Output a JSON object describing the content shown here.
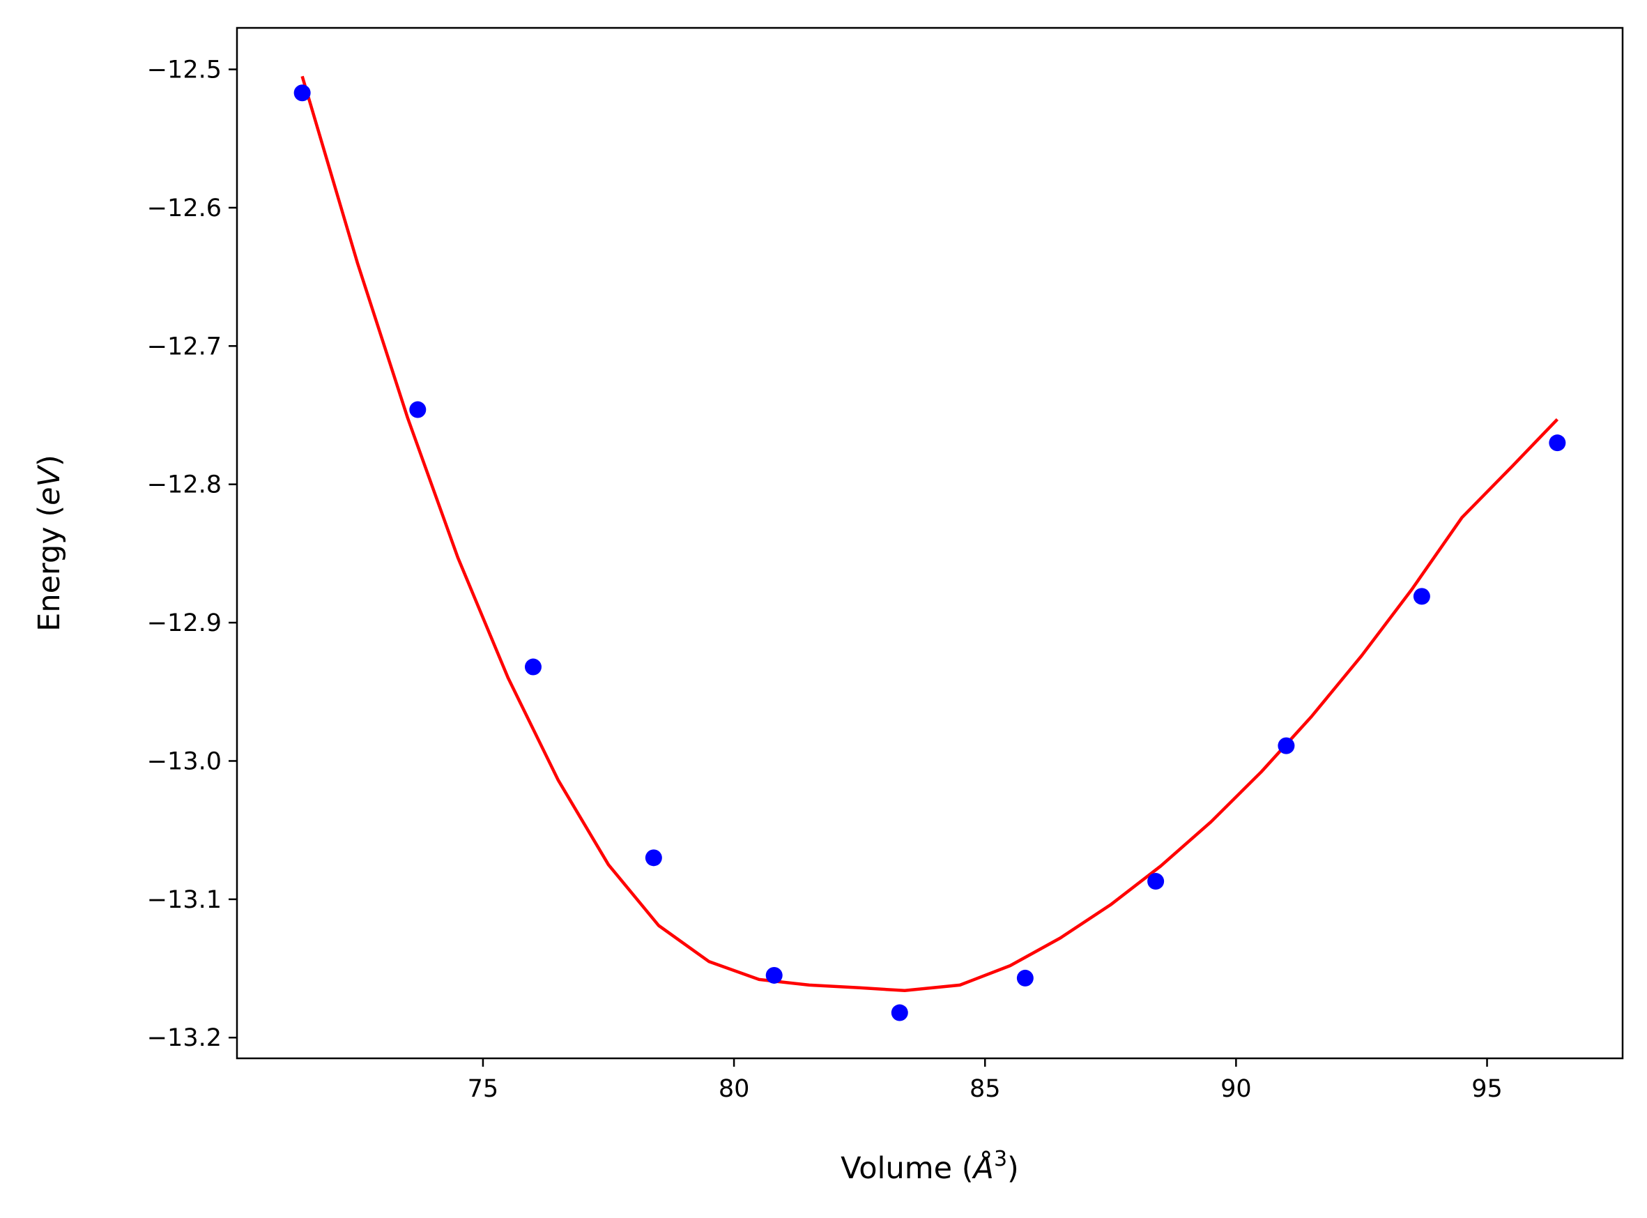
{
  "chart_data": {
    "type": "scatter",
    "title": "",
    "xlabel": "Volume ($\\AA^3$)",
    "ylabel": "Energy ($eV$)",
    "xlabel_parts": {
      "prefix": "Volume (",
      "symbol": "Å",
      "superscript": "3",
      "suffix": ")"
    },
    "ylabel_parts": {
      "prefix": "Energy (",
      "italic": "eV",
      "suffix": ")"
    },
    "xlim": [
      70.1,
      97.7
    ],
    "ylim": [
      -13.215,
      -12.47
    ],
    "xticks": [
      75,
      80,
      85,
      90,
      95
    ],
    "xtick_labels": [
      "75",
      "80",
      "85",
      "90",
      "95"
    ],
    "yticks": [
      -12.5,
      -12.6,
      -12.7,
      -12.8,
      -12.9,
      -13.0,
      -13.1,
      -13.2
    ],
    "ytick_labels": [
      "−12.5",
      "−12.6",
      "−12.7",
      "−12.8",
      "−12.9",
      "−13.0",
      "−13.1",
      "−13.2"
    ],
    "grid": false,
    "series": [
      {
        "kind": "points",
        "color": "#0000ff",
        "x": [
          71.4,
          73.7,
          76.0,
          78.4,
          80.8,
          83.3,
          85.8,
          88.4,
          91.0,
          93.7,
          96.4
        ],
        "y": [
          -12.517,
          -12.746,
          -12.932,
          -13.07,
          -13.155,
          -13.182,
          -13.157,
          -13.087,
          -12.989,
          -12.881,
          -12.77
        ]
      },
      {
        "kind": "fit-line",
        "color": "#ff0000",
        "x": [
          71.4,
          72.5,
          73.5,
          74.5,
          75.5,
          76.5,
          77.5,
          78.5,
          79.5,
          80.5,
          81.5,
          82.5,
          83.4,
          84.5,
          85.5,
          86.5,
          87.5,
          88.5,
          89.5,
          90.5,
          91.5,
          92.5,
          93.5,
          94.5,
          95.5,
          96.4
        ],
        "y": [
          -12.505,
          -12.64,
          -12.752,
          -12.853,
          -12.94,
          -13.014,
          -13.075,
          -13.119,
          -13.145,
          -13.158,
          -13.162,
          -13.164,
          -13.166,
          -13.162,
          -13.148,
          -13.128,
          -13.104,
          -13.076,
          -13.044,
          -13.008,
          -12.968,
          -12.924,
          -12.876,
          -12.824,
          -12.787,
          -12.753
        ]
      }
    ]
  }
}
